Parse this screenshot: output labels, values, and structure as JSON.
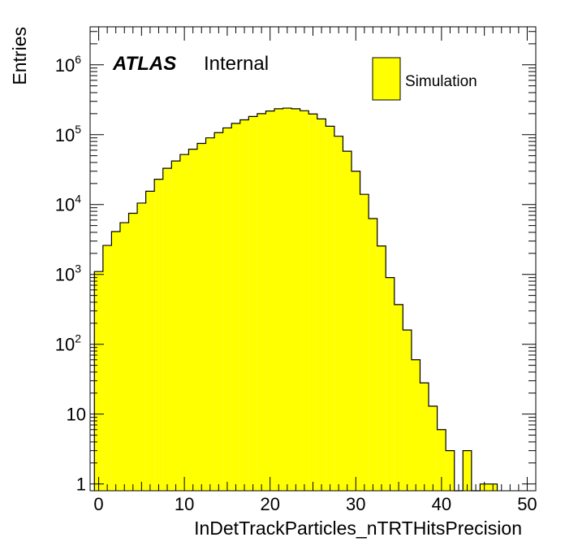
{
  "chart_data": {
    "type": "bar",
    "title": "",
    "xlabel": "InDetTrackParticles_nTRTHitsPrecision",
    "ylabel": "Entries",
    "xlim": [
      -1,
      51
    ],
    "ylim": [
      0.8,
      3500000
    ],
    "yscale": "log",
    "grid": false,
    "legend_position": "top-right",
    "bar_color": "#ffff00",
    "edge_color": "#000000",
    "x_ticks": [
      "0",
      "10",
      "20",
      "30",
      "40",
      "50"
    ],
    "y_ticks": [
      {
        "base": "1",
        "exp": ""
      },
      {
        "base": "10",
        "exp": ""
      },
      {
        "base": "10",
        "exp": "2"
      },
      {
        "base": "10",
        "exp": "3"
      },
      {
        "base": "10",
        "exp": "4"
      },
      {
        "base": "10",
        "exp": "5"
      },
      {
        "base": "10",
        "exp": "6"
      }
    ],
    "bin_width": 1,
    "bins": [
      -0.5,
      0.5,
      1.5,
      2.5,
      3.5,
      4.5,
      5.5,
      6.5,
      7.5,
      8.5,
      9.5,
      10.5,
      11.5,
      12.5,
      13.5,
      14.5,
      15.5,
      16.5,
      17.5,
      18.5,
      19.5,
      20.5,
      21.5,
      22.5,
      23.5,
      24.5,
      25.5,
      26.5,
      27.5,
      28.5,
      29.5,
      30.5,
      31.5,
      32.5,
      33.5,
      34.5,
      35.5,
      36.5,
      37.5,
      38.5,
      39.5,
      40.5,
      41.5,
      42.5,
      43.5,
      44.5,
      45.5
    ],
    "values": [
      1100,
      2600,
      4100,
      5500,
      7500,
      10500,
      15500,
      23000,
      33000,
      42000,
      52000,
      62000,
      75000,
      90000,
      107000,
      125000,
      145000,
      163000,
      182000,
      200000,
      218000,
      235000,
      240000,
      235000,
      220000,
      198000,
      168000,
      132000,
      95000,
      58000,
      30000,
      14000,
      6300,
      2550,
      900,
      370,
      160,
      60,
      28,
      13,
      6,
      3,
      0.8,
      3,
      0.8,
      1,
      1
    ]
  },
  "annotations": {
    "atlas": "ATLAS",
    "internal": "Internal"
  },
  "legend": {
    "entries": [
      "Simulation"
    ]
  }
}
